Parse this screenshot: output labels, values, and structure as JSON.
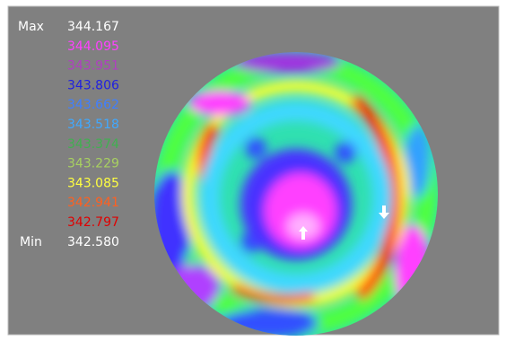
{
  "legend": {
    "max_label": "Max",
    "min_label": "Min",
    "entries": [
      {
        "value": "344.167",
        "color": "#ffffff"
      },
      {
        "value": "344.095",
        "color": "#ff40ff"
      },
      {
        "value": "343.951",
        "color": "#b040c0"
      },
      {
        "value": "343.806",
        "color": "#2020e0"
      },
      {
        "value": "343.662",
        "color": "#3f7fff"
      },
      {
        "value": "343.518",
        "color": "#40a8ff"
      },
      {
        "value": "343.374",
        "color": "#40b050"
      },
      {
        "value": "343.229",
        "color": "#a8d060"
      },
      {
        "value": "343.085",
        "color": "#ffff40"
      },
      {
        "value": "342.941",
        "color": "#ff6020"
      },
      {
        "value": "342.797",
        "color": "#e00000"
      },
      {
        "value": "342.580",
        "color": "#ffffff"
      }
    ]
  }
}
